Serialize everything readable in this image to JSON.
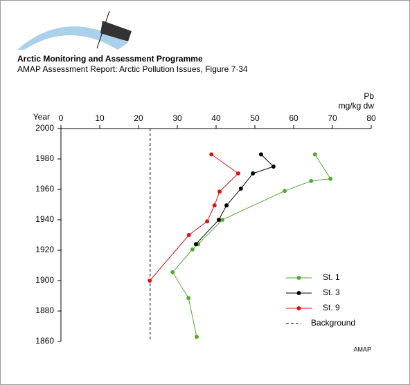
{
  "header": {
    "title": "Arctic Monitoring and Assessment Programme",
    "subtitle": "AMAP Assessment Report: Arctic Pollution Issues, Figure 7·34"
  },
  "footer": "AMAP",
  "chart_data": {
    "type": "line",
    "y_label": "Year",
    "x_label": "Pb",
    "x_unit": "mg/kg dw",
    "xlim": [
      0,
      80
    ],
    "xticks": [
      0,
      10,
      20,
      30,
      40,
      50,
      60,
      70,
      80
    ],
    "ylim": [
      1860,
      2000
    ],
    "yticks": [
      1860,
      1880,
      1900,
      1920,
      1940,
      1960,
      1980,
      2000
    ],
    "series": [
      {
        "name": "St. 1",
        "color": "#55aa33",
        "x": [
          65.5,
          69.5,
          64.5,
          57.7,
          41.6,
          35.4,
          33.9,
          28.8,
          32.9,
          35
        ],
        "values": [
          1983,
          1967,
          1965.5,
          1959,
          1940,
          1924,
          1920.5,
          1905.5,
          1888.5,
          1863
        ]
      },
      {
        "name": "St. 3",
        "color": "#000000",
        "x": [
          51.6,
          54.8,
          49.5,
          46.4,
          42.7,
          40.7,
          34.8
        ],
        "values": [
          1983,
          1975,
          1970.5,
          1960.5,
          1949.5,
          1940,
          1924
        ]
      },
      {
        "name": "St. 9",
        "color": "#dd1111",
        "x": [
          38.8,
          45.7,
          40.9,
          39.6,
          37.7,
          33,
          22.9
        ],
        "values": [
          1983,
          1970.5,
          1958.5,
          1949.5,
          1939,
          1930,
          1900
        ]
      }
    ],
    "background": {
      "name": "Background",
      "value": 23
    }
  }
}
